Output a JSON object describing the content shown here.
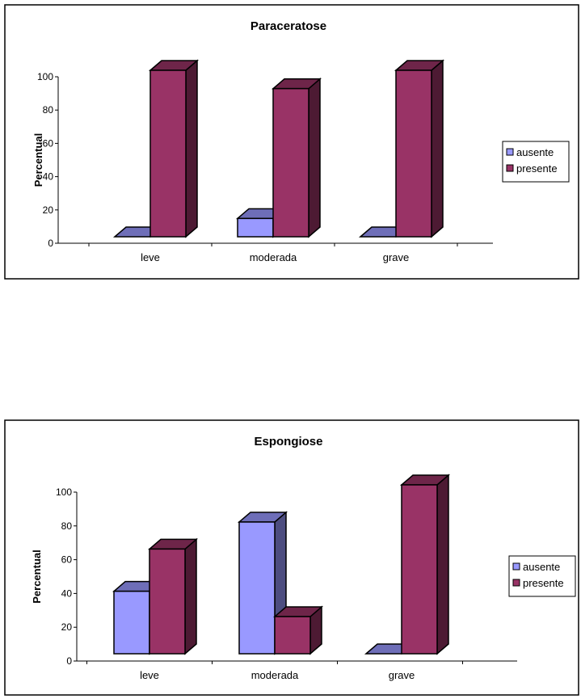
{
  "chart_data": [
    {
      "type": "bar",
      "title": "Paraceratose",
      "ylabel": "Percentual",
      "xlabel": "",
      "categories": [
        "leve",
        "moderada",
        "grave"
      ],
      "ylim": [
        0,
        100
      ],
      "yticks": [
        0,
        20,
        40,
        60,
        80,
        100
      ],
      "series": [
        {
          "name": "ausente",
          "values": [
            0,
            11,
            0
          ],
          "color": "#9999FF"
        },
        {
          "name": "presente",
          "values": [
            100,
            89,
            100
          ],
          "color": "#993366"
        }
      ],
      "legend": "right",
      "grid": false,
      "style": "3d-column"
    },
    {
      "type": "bar",
      "title": "Espongiose",
      "ylabel": "Percentual",
      "xlabel": "",
      "categories": [
        "leve",
        "moderada",
        "grave"
      ],
      "ylim": [
        0,
        100
      ],
      "yticks": [
        0,
        20,
        40,
        60,
        80,
        100
      ],
      "series": [
        {
          "name": "ausente",
          "values": [
            37,
            78,
            0
          ],
          "color": "#9999FF"
        },
        {
          "name": "presente",
          "values": [
            62,
            22,
            100
          ],
          "color": "#993366"
        }
      ],
      "legend": "right",
      "grid": false,
      "style": "3d-column"
    }
  ]
}
